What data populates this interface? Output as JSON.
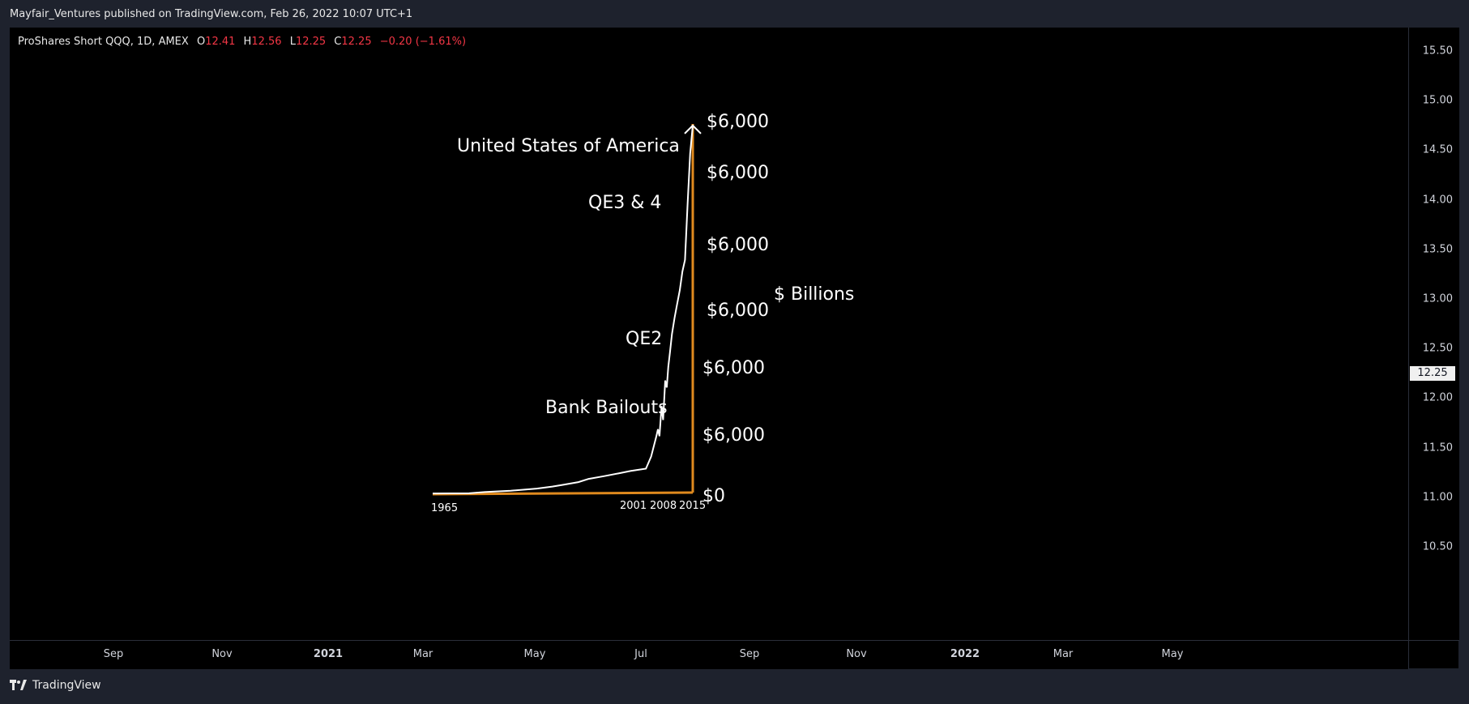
{
  "header": {
    "published": "Mayfair_Ventures published on TradingView.com, Feb 26, 2022 10:07 UTC+1"
  },
  "legend": {
    "symbol": "ProShares Short QQQ, 1D, AMEX",
    "o_label": "O",
    "o_value": "12.41",
    "h_label": "H",
    "h_value": "12.56",
    "l_label": "L",
    "l_value": "12.25",
    "c_label": "C",
    "c_value": "12.25",
    "change": "−0.20 (−1.61%)"
  },
  "price_axis": {
    "ticks": [
      "15.50",
      "15.00",
      "14.50",
      "14.00",
      "13.50",
      "13.00",
      "12.50",
      "12.00",
      "11.50",
      "11.00",
      "10.50"
    ],
    "current_price": "12.25"
  },
  "time_axis": {
    "ticks": [
      {
        "label": "Sep",
        "bold": false
      },
      {
        "label": "Nov",
        "bold": false
      },
      {
        "label": "2021",
        "bold": true
      },
      {
        "label": "Mar",
        "bold": false
      },
      {
        "label": "May",
        "bold": false
      },
      {
        "label": "Jul",
        "bold": false
      },
      {
        "label": "Sep",
        "bold": false
      },
      {
        "label": "Nov",
        "bold": false
      },
      {
        "label": "2022",
        "bold": true
      },
      {
        "label": "Mar",
        "bold": false
      },
      {
        "label": "May",
        "bold": false
      }
    ]
  },
  "chart_data": {
    "type": "line",
    "title": "United States of America",
    "ylabel": "$ Billions",
    "x_labels": [
      "1965",
      "2001",
      "2008",
      "2015"
    ],
    "y_labels": [
      "$0",
      "$6,000",
      "$6,000",
      "$6,000",
      "$6,000",
      "$6,000",
      "$6,000"
    ],
    "annotations": [
      "United States of America",
      "QE3 & 4",
      "QE2",
      "Bank Bailouts"
    ],
    "x": [
      1965,
      1972,
      1975,
      1980,
      1985,
      1988,
      1990,
      1993,
      1995,
      1998,
      2001,
      2003,
      2006,
      2007,
      2008,
      2008.3,
      2008.6,
      2009,
      2009.3,
      2009.7,
      2010,
      2010.3,
      2010.6,
      2011,
      2011.5,
      2012,
      2012.5,
      2013,
      2013.5,
      2014,
      2014.5,
      2015
    ],
    "y": [
      30,
      40,
      90,
      150,
      240,
      330,
      400,
      520,
      660,
      780,
      910,
      1000,
      1100,
      1620,
      2500,
      2800,
      2500,
      3800,
      3200,
      4900,
      4600,
      5500,
      6100,
      6900,
      7600,
      8200,
      8800,
      9600,
      10100,
      12500,
      14700,
      15900
    ],
    "ylim": [
      0,
      16000
    ],
    "colors": {
      "line": "#ffffff",
      "axes": "#e08a1e"
    }
  }
}
